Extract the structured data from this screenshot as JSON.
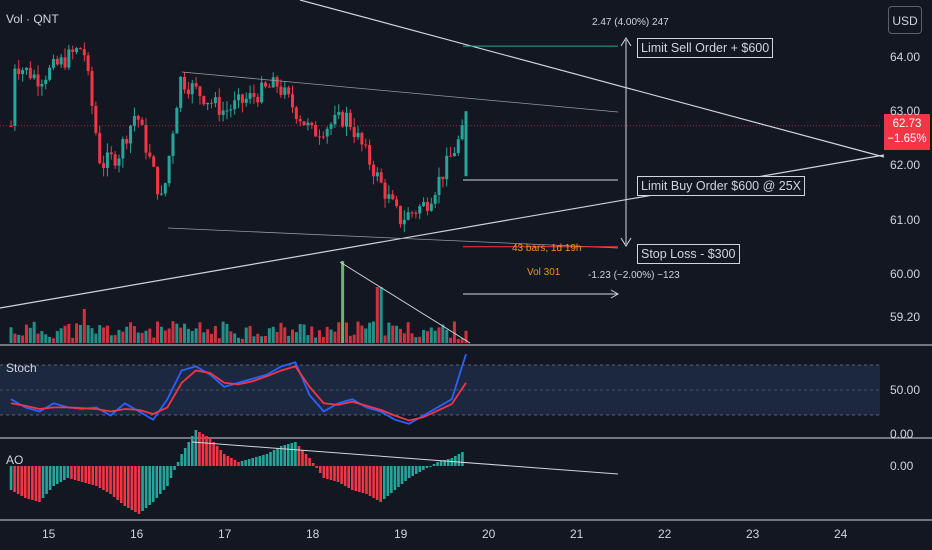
{
  "header": {
    "title": "Vol · QNT",
    "currency_button": "USD"
  },
  "price_tag": {
    "price": "62.73",
    "change": "−1.65%"
  },
  "annotations": {
    "sell_label": "Limit Sell Order + $600",
    "buy_label": "Limit Buy Order $600 @ 25X",
    "stop_label": "Stop Loss - $300",
    "measure_top": "2.47 (4.00%) 247",
    "measure_bottom": "-1.23 (−2.00%) −123",
    "bars_text": "43 bars, 1d 19h",
    "vol_text": "Vol 301"
  },
  "panes": {
    "stoch_title": "Stoch",
    "ao_title": "AO"
  },
  "colors": {
    "up": "#26a69a",
    "down": "#f23645",
    "stoch_k": "#2962ff",
    "stoch_d": "#f23645",
    "volume_up": "#7ed07e",
    "background": "#131722"
  },
  "chart_data": [
    {
      "type": "candlestick",
      "title": "Vol · QNT",
      "ylim": [
        58.9,
        64.9
      ],
      "y_ticks": [
        "64.00",
        "63.00",
        "62.00",
        "61.00",
        "60.00",
        "59.20"
      ],
      "x_ticks": [
        "15",
        "16",
        "17",
        "18",
        "19",
        "20",
        "21",
        "22",
        "23",
        "24"
      ],
      "last_price": 62.73,
      "key_points": [
        {
          "x": "14.6",
          "close": 63.9
        },
        {
          "x": "14.9",
          "close": 63.6
        },
        {
          "x": "15.4",
          "close": 64.2
        },
        {
          "x": "15.6",
          "close": 62.0
        },
        {
          "x": "15.8",
          "close": 62.2
        },
        {
          "x": "16.0",
          "close": 63.0
        },
        {
          "x": "16.3",
          "close": 61.3
        },
        {
          "x": "16.5",
          "close": 63.6
        },
        {
          "x": "17.0",
          "close": 63.0
        },
        {
          "x": "17.6",
          "close": 63.5
        },
        {
          "x": "18.0",
          "close": 62.6
        },
        {
          "x": "18.4",
          "close": 62.9
        },
        {
          "x": "18.8",
          "close": 61.6
        },
        {
          "x": "19.0",
          "close": 61.0
        },
        {
          "x": "19.3",
          "close": 61.3
        },
        {
          "x": "19.5",
          "close": 61.9
        },
        {
          "x": "19.75",
          "close": 62.73
        }
      ],
      "levels": {
        "limit_sell": 64.2,
        "limit_buy": 61.73,
        "stop_loss": 60.5
      }
    },
    {
      "type": "bar",
      "title": "Volume",
      "note": "volume spike of 301 near day 18.3"
    },
    {
      "type": "line",
      "title": "Stoch",
      "ylim": [
        0,
        100
      ],
      "y_ticks": [
        "50.00",
        "0.00"
      ],
      "series": [
        {
          "name": "%K",
          "values": [
            40,
            30,
            25,
            35,
            30,
            28,
            30,
            20,
            35,
            25,
            15,
            40,
            75,
            80,
            70,
            55,
            60,
            65,
            70,
            80,
            85,
            45,
            25,
            35,
            40,
            30,
            25,
            15,
            10,
            20,
            30,
            40,
            95
          ]
        },
        {
          "name": "%D",
          "values": [
            35,
            32,
            28,
            30,
            30,
            29,
            28,
            25,
            28,
            27,
            22,
            30,
            60,
            75,
            72,
            60,
            58,
            62,
            68,
            75,
            80,
            55,
            35,
            33,
            37,
            32,
            27,
            20,
            14,
            18,
            26,
            34,
            60
          ]
        }
      ]
    },
    {
      "type": "bar",
      "title": "AO",
      "y_ticks": [
        "0.00"
      ],
      "values": [
        -0.6,
        -0.8,
        -0.9,
        -0.5,
        -0.3,
        -0.4,
        -0.5,
        -0.7,
        -1.0,
        -1.2,
        -0.9,
        -0.5,
        0.3,
        0.9,
        0.7,
        0.3,
        0.1,
        0.2,
        0.3,
        0.5,
        0.6,
        0.2,
        -0.3,
        -0.4,
        -0.6,
        -0.7,
        -0.9,
        -0.6,
        -0.3,
        -0.1,
        0.1,
        0.2,
        0.4
      ]
    }
  ]
}
